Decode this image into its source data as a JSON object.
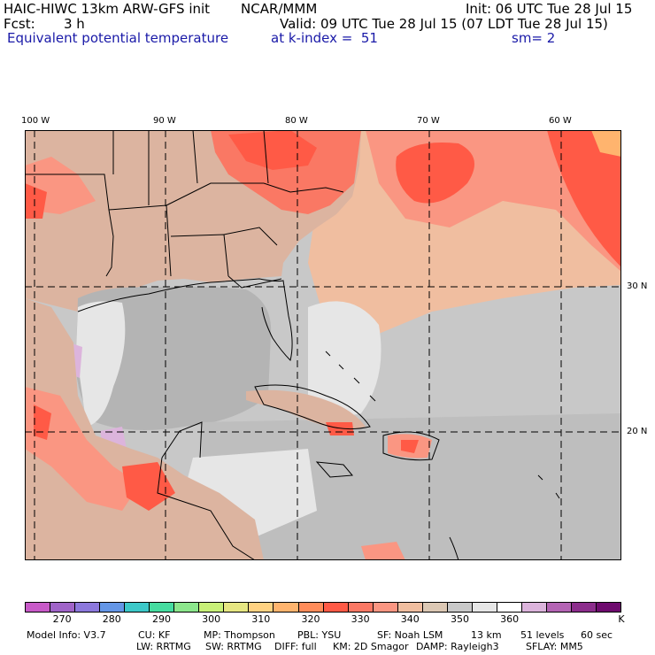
{
  "header": {
    "model_title": "HAIC-HIWC 13km ARW-GFS init",
    "center": "NCAR/MMM",
    "init": "Init: 06 UTC Tue 28 Jul 15",
    "fcst_label": "Fcst:",
    "fcst_value": "3 h",
    "valid": "Valid: 09 UTC Tue 28 Jul 15 (07 LDT Tue 28 Jul 15)",
    "field_name": "Equivalent potential temperature",
    "level": "at k-index =  51",
    "smoothing": "sm= 2"
  },
  "graticule": {
    "longitudes": [
      "100 W",
      "90 W",
      "80 W",
      "70 W",
      "60 W"
    ],
    "latitudes": [
      "30 N",
      "20 N"
    ]
  },
  "colorbar": {
    "colors": [
      "#c85ac8",
      "#a064c8",
      "#8c78dc",
      "#6496e6",
      "#3cc8c8",
      "#46dca0",
      "#8ce68c",
      "#c8f078",
      "#e6e682",
      "#ffd282",
      "#ffb46e",
      "#ff8c5a",
      "#ff5a46",
      "#fa7864",
      "#fa9682",
      "#f0bea0",
      "#dcc8b4",
      "#c8c8c8",
      "#e6e6e6",
      "#ffffff",
      "#dcb4dc",
      "#b464b4",
      "#8c2d8c",
      "#6e0a6e"
    ],
    "tick_labels": [
      "270",
      "280",
      "290",
      "300",
      "310",
      "320",
      "330",
      "340",
      "350",
      "360",
      "K"
    ]
  },
  "model_info": {
    "line1": [
      "Model Info: V3.7",
      "CU: KF",
      "MP: Thompson",
      "PBL: YSU",
      "SF: Noah LSM",
      "13 km",
      "51 levels",
      "60 sec"
    ],
    "line2": [
      "LW: RRTMG",
      "SW: RRTMG",
      "DIFF: full",
      "KM: 2D Smagor",
      "DAMP: Rayleigh3",
      "SFLAY: MM5"
    ]
  }
}
